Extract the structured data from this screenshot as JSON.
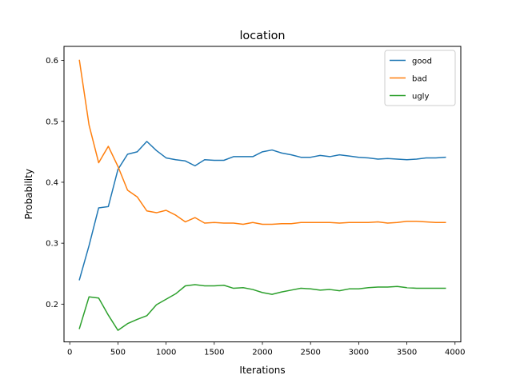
{
  "chart_data": {
    "type": "line",
    "title": "location",
    "xlabel": "Iterations",
    "ylabel": "Probability",
    "xlim": [
      -60,
      4060
    ],
    "ylim": [
      0.138,
      0.623
    ],
    "xticks": [
      0,
      500,
      1000,
      1500,
      2000,
      2500,
      3000,
      3500,
      4000
    ],
    "yticks": [
      0.2,
      0.3,
      0.4,
      0.5,
      0.6
    ],
    "grid": false,
    "legend_position": "top-right",
    "x": [
      100,
      200,
      300,
      400,
      500,
      600,
      700,
      800,
      900,
      1000,
      1100,
      1200,
      1300,
      1400,
      1500,
      1600,
      1700,
      1800,
      1900,
      2000,
      2100,
      2200,
      2300,
      2400,
      2500,
      2600,
      2700,
      2800,
      2900,
      3000,
      3100,
      3200,
      3300,
      3400,
      3500,
      3600,
      3700,
      3800,
      3900
    ],
    "series": [
      {
        "name": "good",
        "color": "#1f77b4",
        "values": [
          0.24,
          0.296,
          0.358,
          0.36,
          0.421,
          0.446,
          0.45,
          0.467,
          0.452,
          0.44,
          0.437,
          0.435,
          0.427,
          0.437,
          0.436,
          0.436,
          0.442,
          0.442,
          0.442,
          0.45,
          0.453,
          0.448,
          0.445,
          0.441,
          0.441,
          0.444,
          0.442,
          0.445,
          0.443,
          0.441,
          0.44,
          0.438,
          0.439,
          0.438,
          0.437,
          0.438,
          0.44,
          0.44,
          0.441
        ]
      },
      {
        "name": "bad",
        "color": "#ff7f0e",
        "values": [
          0.6,
          0.494,
          0.432,
          0.459,
          0.426,
          0.387,
          0.376,
          0.353,
          0.35,
          0.354,
          0.346,
          0.335,
          0.342,
          0.333,
          0.334,
          0.333,
          0.333,
          0.331,
          0.334,
          0.331,
          0.331,
          0.332,
          0.332,
          0.334,
          0.334,
          0.334,
          0.334,
          0.333,
          0.334,
          0.334,
          0.334,
          0.335,
          0.333,
          0.334,
          0.336,
          0.336,
          0.335,
          0.334,
          0.334
        ]
      },
      {
        "name": "ugly",
        "color": "#2ca02c",
        "values": [
          0.16,
          0.212,
          0.21,
          0.182,
          0.157,
          0.168,
          0.175,
          0.181,
          0.199,
          0.208,
          0.217,
          0.23,
          0.232,
          0.23,
          0.23,
          0.231,
          0.226,
          0.227,
          0.224,
          0.219,
          0.216,
          0.22,
          0.223,
          0.226,
          0.225,
          0.223,
          0.224,
          0.222,
          0.225,
          0.225,
          0.227,
          0.228,
          0.228,
          0.229,
          0.227,
          0.226,
          0.226,
          0.226,
          0.226
        ]
      }
    ]
  }
}
